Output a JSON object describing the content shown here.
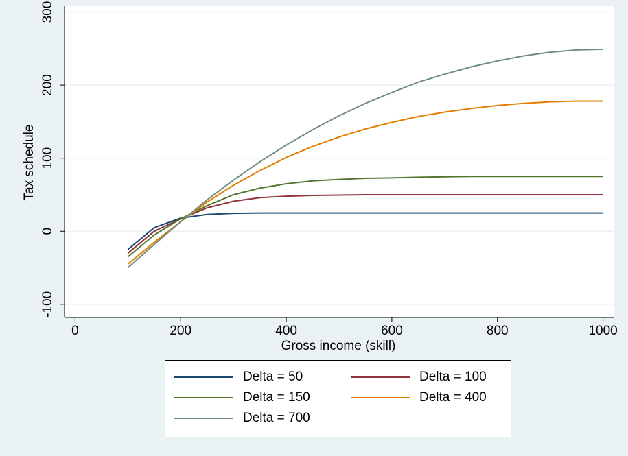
{
  "chart_data": {
    "type": "line",
    "xlabel": "Gross income (skill)",
    "ylabel": "Tax schedule",
    "xlim": [
      -20,
      1020
    ],
    "ylim": [
      -118,
      308
    ],
    "xticks": [
      0,
      200,
      400,
      600,
      800,
      1000
    ],
    "yticks": [
      -100,
      0,
      100,
      200,
      300
    ],
    "xtick_labels": [
      "0",
      "200",
      "400",
      "600",
      "800",
      "1000"
    ],
    "ytick_labels": [
      "-100",
      "0",
      "100",
      "200",
      "300"
    ],
    "grid": "horizontal",
    "legend_position": "bottom",
    "x": [
      100,
      150,
      200,
      250,
      300,
      350,
      400,
      450,
      500,
      550,
      600,
      650,
      700,
      750,
      800,
      850,
      900,
      950,
      1000
    ],
    "series": [
      {
        "name": "Delta = 50",
        "color": "#1a476f",
        "values": [
          -25,
          5,
          18,
          23,
          24.5,
          25,
          25,
          25,
          25,
          25,
          25,
          25,
          25,
          25,
          25,
          25,
          25,
          25,
          25
        ]
      },
      {
        "name": "Delta = 100",
        "color": "#90353b",
        "values": [
          -30,
          0,
          17,
          32,
          41,
          46,
          48,
          49,
          49.5,
          50,
          50,
          50,
          50,
          50,
          50,
          50,
          50,
          50,
          50
        ]
      },
      {
        "name": "Delta = 150",
        "color": "#55752f",
        "values": [
          -35,
          -5,
          17,
          35,
          50,
          59,
          65,
          69,
          71,
          72.5,
          73,
          74,
          74.5,
          75,
          75,
          75,
          75,
          75,
          75
        ]
      },
      {
        "name": "Delta = 400",
        "color": "#e37e00",
        "values": [
          -45,
          -15,
          13,
          40,
          63,
          83,
          101,
          116,
          129,
          140,
          149,
          157,
          163,
          168,
          172,
          175,
          177,
          178,
          178
        ]
      },
      {
        "name": "Delta = 700",
        "color": "#6e8e84",
        "values": [
          -50,
          -18,
          13,
          43,
          70,
          95,
          118,
          139,
          158,
          175,
          190,
          204,
          215,
          225,
          233,
          240,
          245,
          248,
          249
        ]
      }
    ]
  }
}
